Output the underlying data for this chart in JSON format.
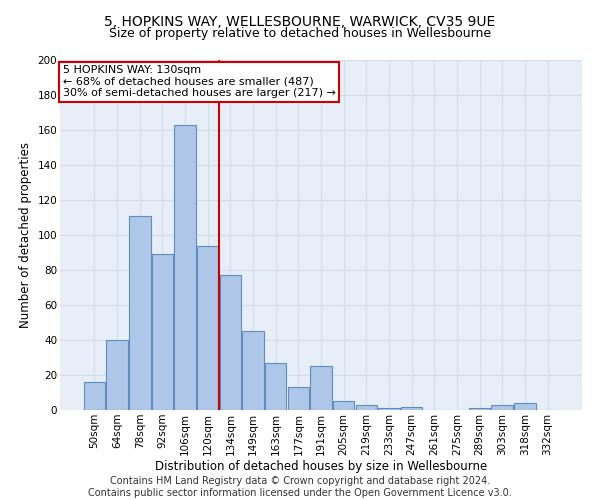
{
  "title1": "5, HOPKINS WAY, WELLESBOURNE, WARWICK, CV35 9UE",
  "title2": "Size of property relative to detached houses in Wellesbourne",
  "xlabel": "Distribution of detached houses by size in Wellesbourne",
  "ylabel": "Number of detached properties",
  "footer1": "Contains HM Land Registry data © Crown copyright and database right 2024.",
  "footer2": "Contains public sector information licensed under the Open Government Licence v3.0.",
  "bar_labels": [
    "50sqm",
    "64sqm",
    "78sqm",
    "92sqm",
    "106sqm",
    "120sqm",
    "134sqm",
    "149sqm",
    "163sqm",
    "177sqm",
    "191sqm",
    "205sqm",
    "219sqm",
    "233sqm",
    "247sqm",
    "261sqm",
    "275sqm",
    "289sqm",
    "303sqm",
    "318sqm",
    "332sqm"
  ],
  "bar_values": [
    16,
    40,
    111,
    89,
    163,
    94,
    77,
    45,
    27,
    13,
    25,
    5,
    3,
    1,
    2,
    0,
    0,
    1,
    3,
    4,
    0
  ],
  "bar_color": "#aec6e8",
  "bar_edgecolor": "#5a8fc0",
  "bar_linewidth": 0.8,
  "redline_x": 5.5,
  "redline_label": "5 HOPKINS WAY: 130sqm",
  "annotation_line1": "← 68% of detached houses are smaller (487)",
  "annotation_line2": "30% of semi-detached houses are larger (217) →",
  "annotation_box_color": "#ffffff",
  "annotation_box_edgecolor": "#cc0000",
  "redline_color": "#cc0000",
  "ylim": [
    0,
    200
  ],
  "yticks": [
    0,
    20,
    40,
    60,
    80,
    100,
    120,
    140,
    160,
    180,
    200
  ],
  "grid_color": "#d0dded",
  "bg_color": "#e8eef8",
  "title1_fontsize": 10,
  "title2_fontsize": 9,
  "xlabel_fontsize": 8.5,
  "ylabel_fontsize": 8.5,
  "tick_fontsize": 7.5,
  "footer_fontsize": 7,
  "annot_fontsize": 8
}
